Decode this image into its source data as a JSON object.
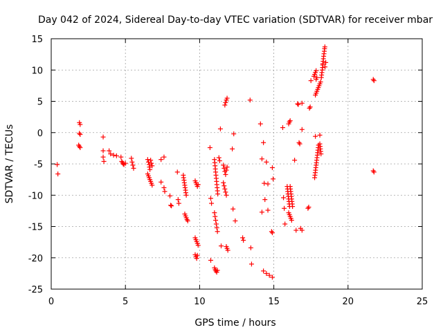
{
  "chart_data": {
    "type": "scatter",
    "title": "Day 042 of 2024, Sidereal Day-to-day VTEC variation (SDTVAR) for receiver mbar",
    "xlabel": "GPS time / hours",
    "ylabel": "SDTVAR / TECUs",
    "xlim": [
      0,
      25
    ],
    "ylim": [
      -25,
      15
    ],
    "xticks": [
      "0",
      "5",
      "10",
      "15",
      "20",
      "25"
    ],
    "yticks": [
      "15",
      "10",
      "5",
      "0",
      "-5",
      "-10",
      "-15",
      "-20",
      "-25"
    ],
    "grid": true,
    "marker": "+",
    "color": "#ff0000",
    "series": [
      {
        "name": "SDTVAR",
        "points": [
          [
            0.4,
            -5.1
          ],
          [
            0.45,
            -6.6
          ],
          [
            1.9,
            1.6
          ],
          [
            1.95,
            1.3
          ],
          [
            1.9,
            -0.1
          ],
          [
            1.95,
            -0.3
          ],
          [
            1.85,
            -2.0
          ],
          [
            1.9,
            -2.2
          ],
          [
            1.95,
            -2.4
          ],
          [
            3.5,
            -0.7
          ],
          [
            3.5,
            -2.9
          ],
          [
            3.5,
            -3.9
          ],
          [
            3.55,
            -4.6
          ],
          [
            3.9,
            -2.9
          ],
          [
            4.0,
            -3.4
          ],
          [
            4.2,
            -3.6
          ],
          [
            4.4,
            -3.7
          ],
          [
            4.7,
            -3.9
          ],
          [
            4.75,
            -4.6
          ],
          [
            4.8,
            -4.8
          ],
          [
            4.85,
            -5.0
          ],
          [
            4.9,
            -5.1
          ],
          [
            5.0,
            -4.9
          ],
          [
            5.4,
            -4.1
          ],
          [
            5.45,
            -4.7
          ],
          [
            5.5,
            -5.2
          ],
          [
            5.55,
            -5.7
          ],
          [
            6.5,
            -4.3
          ],
          [
            6.55,
            -4.7
          ],
          [
            6.6,
            -5.1
          ],
          [
            6.62,
            -5.5
          ],
          [
            6.65,
            -5.9
          ],
          [
            6.7,
            -4.4
          ],
          [
            6.75,
            -4.9
          ],
          [
            6.8,
            -5.3
          ],
          [
            6.5,
            -6.6
          ],
          [
            6.55,
            -6.9
          ],
          [
            6.6,
            -7.2
          ],
          [
            6.65,
            -7.5
          ],
          [
            6.7,
            -7.8
          ],
          [
            6.75,
            -8.1
          ],
          [
            6.8,
            -8.4
          ],
          [
            7.4,
            -4.3
          ],
          [
            7.6,
            -3.9
          ],
          [
            7.4,
            -7.9
          ],
          [
            7.6,
            -8.8
          ],
          [
            7.65,
            -9.4
          ],
          [
            8.0,
            -10.1
          ],
          [
            8.05,
            -11.6
          ],
          [
            8.1,
            -11.7
          ],
          [
            8.5,
            -6.3
          ],
          [
            8.55,
            -10.7
          ],
          [
            8.6,
            -11.3
          ],
          [
            8.9,
            -6.8
          ],
          [
            8.92,
            -7.2
          ],
          [
            8.95,
            -7.6
          ],
          [
            8.97,
            -8.0
          ],
          [
            9.0,
            -8.4
          ],
          [
            9.02,
            -8.8
          ],
          [
            9.05,
            -9.2
          ],
          [
            9.07,
            -9.6
          ],
          [
            9.1,
            -10.0
          ],
          [
            9.0,
            -13.0
          ],
          [
            9.05,
            -13.3
          ],
          [
            9.1,
            -13.6
          ],
          [
            9.15,
            -13.9
          ],
          [
            9.2,
            -14.1
          ],
          [
            9.7,
            -7.7
          ],
          [
            9.75,
            -8.0
          ],
          [
            9.8,
            -8.3
          ],
          [
            9.85,
            -8.6
          ],
          [
            9.9,
            -8.3
          ],
          [
            9.7,
            -16.8
          ],
          [
            9.75,
            -17.1
          ],
          [
            9.8,
            -17.4
          ],
          [
            9.85,
            -17.7
          ],
          [
            9.9,
            -18.0
          ],
          [
            9.7,
            -19.5
          ],
          [
            9.75,
            -19.8
          ],
          [
            9.8,
            -20.1
          ],
          [
            9.85,
            -19.6
          ],
          [
            10.7,
            -2.4
          ],
          [
            10.75,
            -10.5
          ],
          [
            10.8,
            -11.3
          ],
          [
            10.75,
            -20.4
          ],
          [
            11.0,
            -4.3
          ],
          [
            11.02,
            -4.8
          ],
          [
            11.04,
            -5.3
          ],
          [
            11.06,
            -5.8
          ],
          [
            11.08,
            -6.3
          ],
          [
            11.1,
            -6.8
          ],
          [
            11.12,
            -7.3
          ],
          [
            11.14,
            -7.8
          ],
          [
            11.16,
            -8.3
          ],
          [
            11.18,
            -8.8
          ],
          [
            11.2,
            -9.3
          ],
          [
            11.22,
            -9.8
          ],
          [
            11.0,
            -12.8
          ],
          [
            11.04,
            -13.4
          ],
          [
            11.08,
            -14.0
          ],
          [
            11.12,
            -14.6
          ],
          [
            11.16,
            -15.2
          ],
          [
            11.2,
            -15.8
          ],
          [
            11.0,
            -21.6
          ],
          [
            11.05,
            -21.9
          ],
          [
            11.1,
            -22.1
          ],
          [
            11.15,
            -22.3
          ],
          [
            11.2,
            -22.0
          ],
          [
            11.3,
            -4.0
          ],
          [
            11.35,
            -4.5
          ],
          [
            11.4,
            0.6
          ],
          [
            11.45,
            -18.1
          ],
          [
            11.7,
            4.4
          ],
          [
            11.75,
            4.8
          ],
          [
            11.8,
            5.2
          ],
          [
            11.85,
            5.5
          ],
          [
            11.6,
            -5.2
          ],
          [
            11.65,
            -5.7
          ],
          [
            11.7,
            -6.2
          ],
          [
            11.75,
            -6.7
          ],
          [
            11.8,
            -6.0
          ],
          [
            11.85,
            -5.5
          ],
          [
            11.6,
            -8.0
          ],
          [
            11.65,
            -8.5
          ],
          [
            11.7,
            -9.0
          ],
          [
            11.75,
            -9.5
          ],
          [
            11.8,
            -10.0
          ],
          [
            11.8,
            -18.2
          ],
          [
            11.85,
            -18.5
          ],
          [
            11.9,
            -18.8
          ],
          [
            12.2,
            -2.6
          ],
          [
            12.3,
            -0.2
          ],
          [
            12.25,
            -12.2
          ],
          [
            12.4,
            -14.1
          ],
          [
            12.9,
            -16.8
          ],
          [
            12.95,
            -17.2
          ],
          [
            13.4,
            5.2
          ],
          [
            13.45,
            -18.4
          ],
          [
            13.5,
            -21.0
          ],
          [
            14.1,
            1.4
          ],
          [
            14.2,
            -4.2
          ],
          [
            14.3,
            -1.6
          ],
          [
            14.35,
            -8.1
          ],
          [
            14.4,
            -10.7
          ],
          [
            14.2,
            -12.7
          ],
          [
            14.6,
            -12.4
          ],
          [
            14.5,
            -4.7
          ],
          [
            14.6,
            -8.2
          ],
          [
            14.3,
            -22.1
          ],
          [
            14.5,
            -22.5
          ],
          [
            14.7,
            -22.8
          ],
          [
            14.9,
            -23.1
          ],
          [
            14.9,
            -5.6
          ],
          [
            14.95,
            -7.4
          ],
          [
            14.9,
            -16.0
          ],
          [
            14.85,
            -15.8
          ],
          [
            15.6,
            0.8
          ],
          [
            15.65,
            -10.4
          ],
          [
            15.7,
            -12.1
          ],
          [
            15.75,
            -14.6
          ],
          [
            16.0,
            1.4
          ],
          [
            16.05,
            1.7
          ],
          [
            16.1,
            1.9
          ],
          [
            15.9,
            -8.6
          ],
          [
            15.92,
            -9.0
          ],
          [
            15.94,
            -9.4
          ],
          [
            15.96,
            -9.8
          ],
          [
            15.98,
            -10.2
          ],
          [
            16.0,
            -10.6
          ],
          [
            16.02,
            -11.0
          ],
          [
            16.04,
            -11.4
          ],
          [
            16.06,
            -11.8
          ],
          [
            16.1,
            -8.6
          ],
          [
            16.12,
            -9.0
          ],
          [
            16.14,
            -9.4
          ],
          [
            16.16,
            -9.8
          ],
          [
            16.18,
            -10.2
          ],
          [
            16.2,
            -10.6
          ],
          [
            16.22,
            -11.0
          ],
          [
            16.24,
            -11.4
          ],
          [
            16.26,
            -11.8
          ],
          [
            16.0,
            -12.8
          ],
          [
            16.05,
            -13.1
          ],
          [
            16.1,
            -13.4
          ],
          [
            16.15,
            -13.7
          ],
          [
            16.2,
            -14.0
          ],
          [
            16.4,
            -4.4
          ],
          [
            16.5,
            -15.6
          ],
          [
            16.6,
            4.6
          ],
          [
            16.65,
            4.5
          ],
          [
            16.7,
            -1.6
          ],
          [
            16.75,
            -1.8
          ],
          [
            16.8,
            -15.3
          ],
          [
            16.9,
            -15.6
          ],
          [
            16.9,
            4.7
          ],
          [
            16.9,
            0.5
          ],
          [
            17.3,
            -12.1
          ],
          [
            17.35,
            -11.9
          ],
          [
            17.4,
            3.9
          ],
          [
            17.45,
            4.1
          ],
          [
            17.5,
            8.3
          ],
          [
            17.8,
            -0.6
          ],
          [
            17.85,
            8.5
          ],
          [
            17.9,
            8.8
          ],
          [
            17.7,
            9.0
          ],
          [
            17.75,
            9.3
          ],
          [
            17.8,
            9.6
          ],
          [
            17.85,
            9.9
          ],
          [
            17.8,
            6.0
          ],
          [
            17.85,
            6.3
          ],
          [
            17.9,
            6.6
          ],
          [
            17.95,
            6.9
          ],
          [
            18.0,
            7.2
          ],
          [
            18.05,
            7.5
          ],
          [
            18.1,
            7.8
          ],
          [
            18.15,
            8.1
          ],
          [
            17.75,
            -7.2
          ],
          [
            17.77,
            -6.8
          ],
          [
            17.79,
            -6.4
          ],
          [
            17.81,
            -6.0
          ],
          [
            17.83,
            -5.6
          ],
          [
            17.85,
            -5.2
          ],
          [
            17.87,
            -4.8
          ],
          [
            17.89,
            -4.4
          ],
          [
            17.91,
            -4.0
          ],
          [
            17.93,
            -3.6
          ],
          [
            17.95,
            -3.2
          ],
          [
            17.97,
            -2.8
          ],
          [
            17.99,
            -2.4
          ],
          [
            18.01,
            -2.0
          ],
          [
            18.1,
            -0.4
          ],
          [
            18.1,
            -1.8
          ],
          [
            18.12,
            -2.2
          ],
          [
            18.14,
            -2.6
          ],
          [
            18.16,
            -3.0
          ],
          [
            18.18,
            -3.4
          ],
          [
            18.2,
            8.8
          ],
          [
            18.22,
            9.2
          ],
          [
            18.24,
            9.6
          ],
          [
            18.26,
            10.0
          ],
          [
            18.28,
            10.4
          ],
          [
            18.3,
            10.8
          ],
          [
            18.3,
            11.0
          ],
          [
            18.32,
            11.4
          ],
          [
            18.34,
            11.8
          ],
          [
            18.36,
            12.2
          ],
          [
            18.38,
            12.6
          ],
          [
            18.4,
            13.0
          ],
          [
            18.42,
            13.4
          ],
          [
            18.44,
            13.7
          ],
          [
            18.45,
            10.5
          ],
          [
            18.5,
            11.2
          ],
          [
            21.7,
            8.5
          ],
          [
            21.75,
            8.3
          ],
          [
            21.7,
            -6.1
          ],
          [
            21.75,
            -6.3
          ]
        ]
      }
    ]
  }
}
